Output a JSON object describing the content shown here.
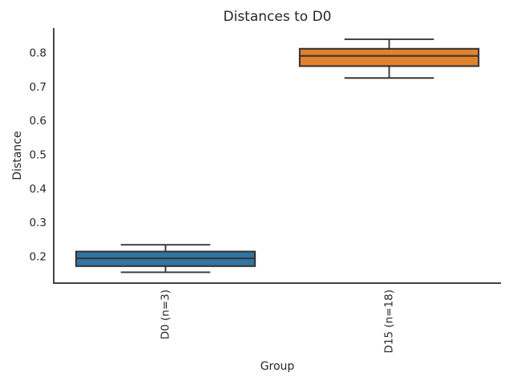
{
  "figure": {
    "title": "Distances to D0"
  },
  "chart_data": {
    "type": "boxplot",
    "title": "Distances to D0",
    "xlabel": "Group",
    "ylabel": "Distance",
    "categories": [
      "D0 (n=3)",
      "D15 (n=18)"
    ],
    "yticks": [
      0.2,
      0.3,
      0.4,
      0.5,
      0.6,
      0.7,
      0.8
    ],
    "ylim": [
      0.122,
      0.873
    ],
    "grid": false,
    "legend": "none",
    "series": [
      {
        "label": "D0 (n=3)",
        "whisker_low": 0.154,
        "q1": 0.172,
        "median": 0.195,
        "q3": 0.215,
        "whisker_high": 0.235,
        "outliers": [],
        "color": "#3274a1"
      },
      {
        "label": "D15 (n=18)",
        "whisker_low": 0.726,
        "q1": 0.761,
        "median": 0.791,
        "q3": 0.812,
        "whisker_high": 0.84,
        "outliers": [],
        "color": "#e1812c"
      }
    ],
    "styles": {
      "box_edge_color": "#363636",
      "whisker_color": "#363636",
      "median_color": "#363636",
      "axis_color": "#262626",
      "text_color": "#262626",
      "background": "#ffffff"
    }
  }
}
